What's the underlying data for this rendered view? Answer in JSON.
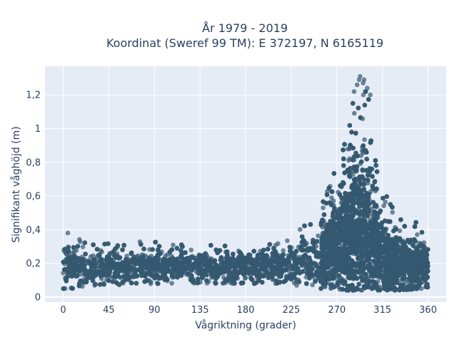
{
  "chart_data": {
    "type": "scatter",
    "title_line1": "År 1979 - 2019",
    "title_line2": "Koordinat (Sweref 99 TM): E 372197, N 6165119",
    "xlabel": "Vågriktning (grader)",
    "ylabel": "Signifikant våghöjd (m)",
    "xlim": [
      -18,
      378
    ],
    "ylim": [
      -0.03,
      1.37
    ],
    "xticks": [
      0,
      45,
      90,
      135,
      180,
      225,
      270,
      315,
      360
    ],
    "xtick_labels": [
      "0",
      "45",
      "90",
      "135",
      "180",
      "225",
      "270",
      "315",
      "360"
    ],
    "yticks": [
      0,
      0.2,
      0.4,
      0.6,
      0.8,
      1.0,
      1.2
    ],
    "ytick_labels": [
      "0",
      "0,2",
      "0,4",
      "0,6",
      "0,8",
      "1",
      "1,2"
    ],
    "grid": true,
    "marker_color": "#34596f",
    "plot_bg": "#e5ecf6",
    "grid_color": "#ffffff",
    "envelope": {
      "x": [
        0,
        10,
        20,
        45,
        90,
        135,
        180,
        200,
        225,
        240,
        250,
        260,
        270,
        280,
        285,
        290,
        295,
        300,
        305,
        310,
        315,
        320,
        330,
        340,
        350,
        360
      ],
      "y_min": [
        0.05,
        0.05,
        0.06,
        0.07,
        0.08,
        0.08,
        0.08,
        0.08,
        0.07,
        0.06,
        0.05,
        0.05,
        0.04,
        0.04,
        0.04,
        0.04,
        0.04,
        0.04,
        0.04,
        0.04,
        0.04,
        0.04,
        0.04,
        0.04,
        0.05,
        0.05
      ],
      "y_max": [
        0.4,
        0.37,
        0.34,
        0.33,
        0.33,
        0.31,
        0.3,
        0.33,
        0.4,
        0.44,
        0.52,
        0.62,
        0.78,
        1.02,
        1.15,
        1.26,
        1.31,
        1.27,
        1.08,
        0.78,
        0.65,
        0.6,
        0.5,
        0.44,
        0.45,
        0.3
      ],
      "density_center": [
        0.19,
        0.19,
        0.18,
        0.18,
        0.18,
        0.18,
        0.18,
        0.19,
        0.2,
        0.21,
        0.23,
        0.26,
        0.3,
        0.36,
        0.4,
        0.42,
        0.42,
        0.4,
        0.34,
        0.28,
        0.24,
        0.22,
        0.2,
        0.19,
        0.18,
        0.18
      ]
    }
  }
}
